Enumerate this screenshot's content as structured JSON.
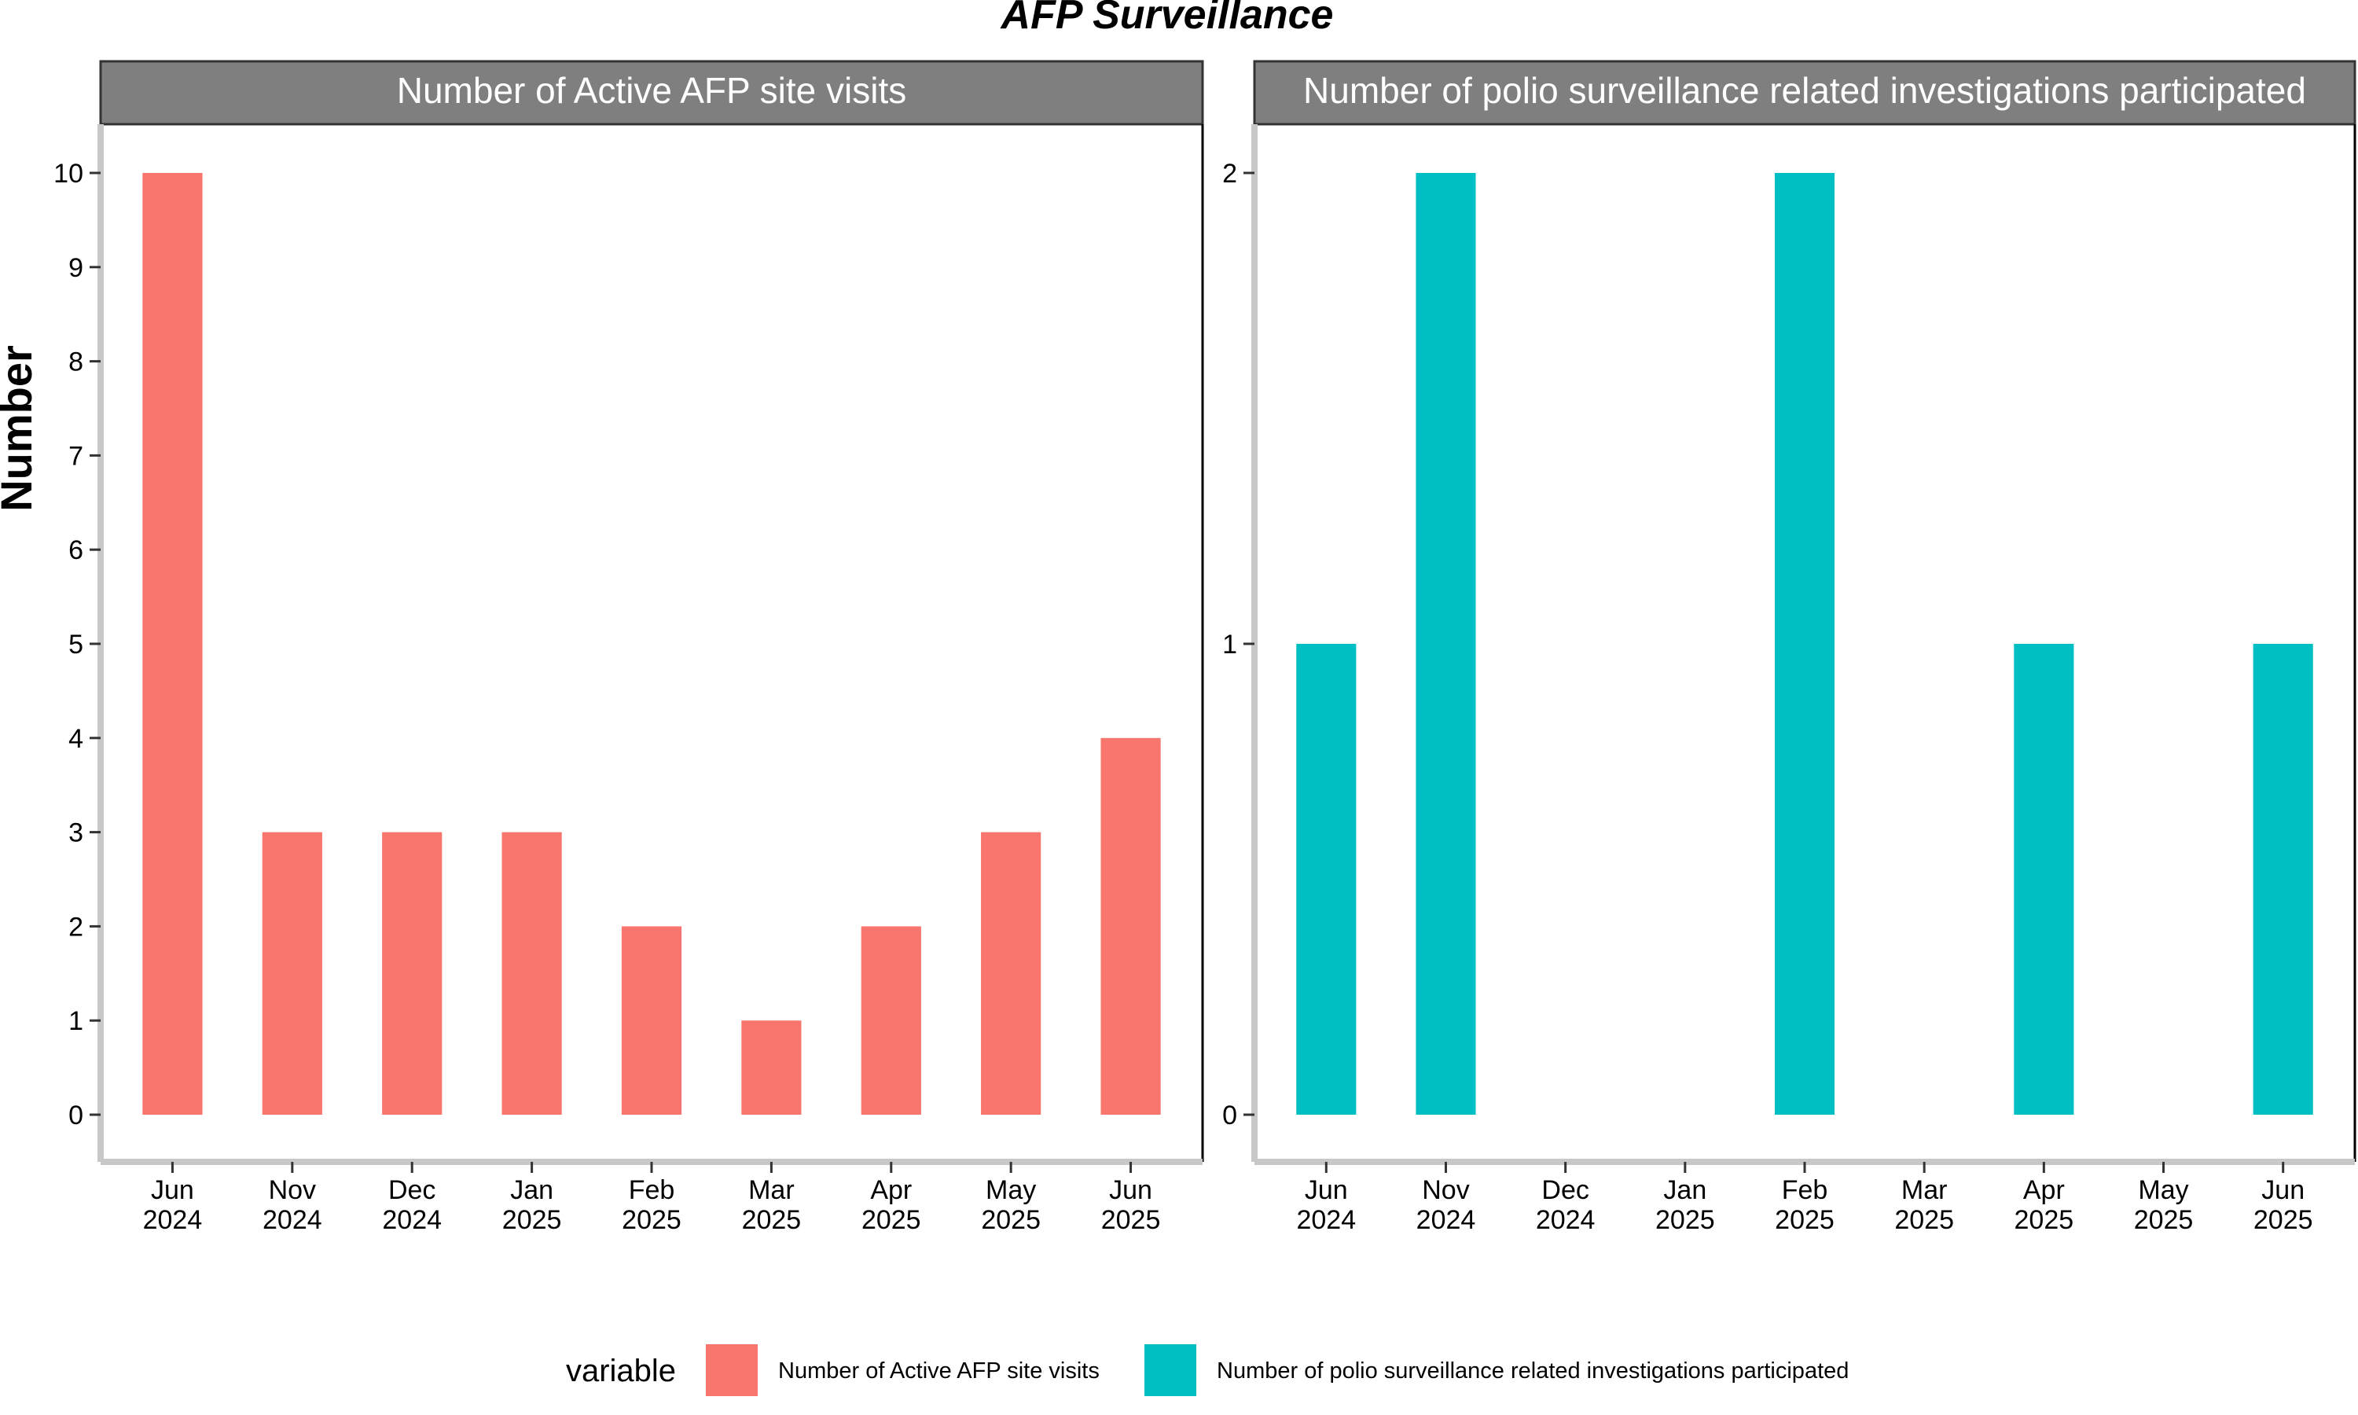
{
  "title": "AFP Surveillance",
  "ylabel": "Number",
  "legend": {
    "title": "variable",
    "position": "bottom",
    "entries": [
      {
        "label": "Number of Active AFP site visits",
        "color": "#F8766D"
      },
      {
        "label": "Number of polio surveillance related investigations participated",
        "color": "#00BFC4"
      }
    ]
  },
  "chart_data": [
    {
      "type": "bar",
      "title": "Number of Active AFP site visits",
      "color": "#F8766D",
      "categories": [
        "Jun 2024",
        "Nov 2024",
        "Dec 2024",
        "Jan 2025",
        "Feb 2025",
        "Mar 2025",
        "Apr 2025",
        "May 2025",
        "Jun 2025"
      ],
      "tick_labels": [
        [
          "Jun",
          "2024"
        ],
        [
          "Nov",
          "2024"
        ],
        [
          "Dec",
          "2024"
        ],
        [
          "Jan",
          "2025"
        ],
        [
          "Feb",
          "2025"
        ],
        [
          "Mar",
          "2025"
        ],
        [
          "Apr",
          "2025"
        ],
        [
          "May",
          "2025"
        ],
        [
          "Jun",
          "2025"
        ]
      ],
      "values": [
        10,
        3,
        3,
        3,
        2,
        1,
        2,
        3,
        4
      ],
      "ylim": [
        0,
        10
      ],
      "yticks": [
        0,
        1,
        2,
        3,
        4,
        5,
        6,
        7,
        8,
        9,
        10
      ],
      "grid": false
    },
    {
      "type": "bar",
      "title": "Number of polio surveillance related investigations participated",
      "color": "#00BFC4",
      "categories": [
        "Jun 2024",
        "Nov 2024",
        "Dec 2024",
        "Jan 2025",
        "Feb 2025",
        "Mar 2025",
        "Apr 2025",
        "May 2025",
        "Jun 2025"
      ],
      "tick_labels": [
        [
          "Jun",
          "2024"
        ],
        [
          "Nov",
          "2024"
        ],
        [
          "Dec",
          "2024"
        ],
        [
          "Jan",
          "2025"
        ],
        [
          "Feb",
          "2025"
        ],
        [
          "Mar",
          "2025"
        ],
        [
          "Apr",
          "2025"
        ],
        [
          "May",
          "2025"
        ],
        [
          "Jun",
          "2025"
        ]
      ],
      "values": [
        1,
        2,
        null,
        null,
        2,
        null,
        1,
        null,
        1
      ],
      "ylim": [
        0,
        2
      ],
      "yticks": [
        0,
        1,
        2
      ],
      "grid": false
    }
  ]
}
